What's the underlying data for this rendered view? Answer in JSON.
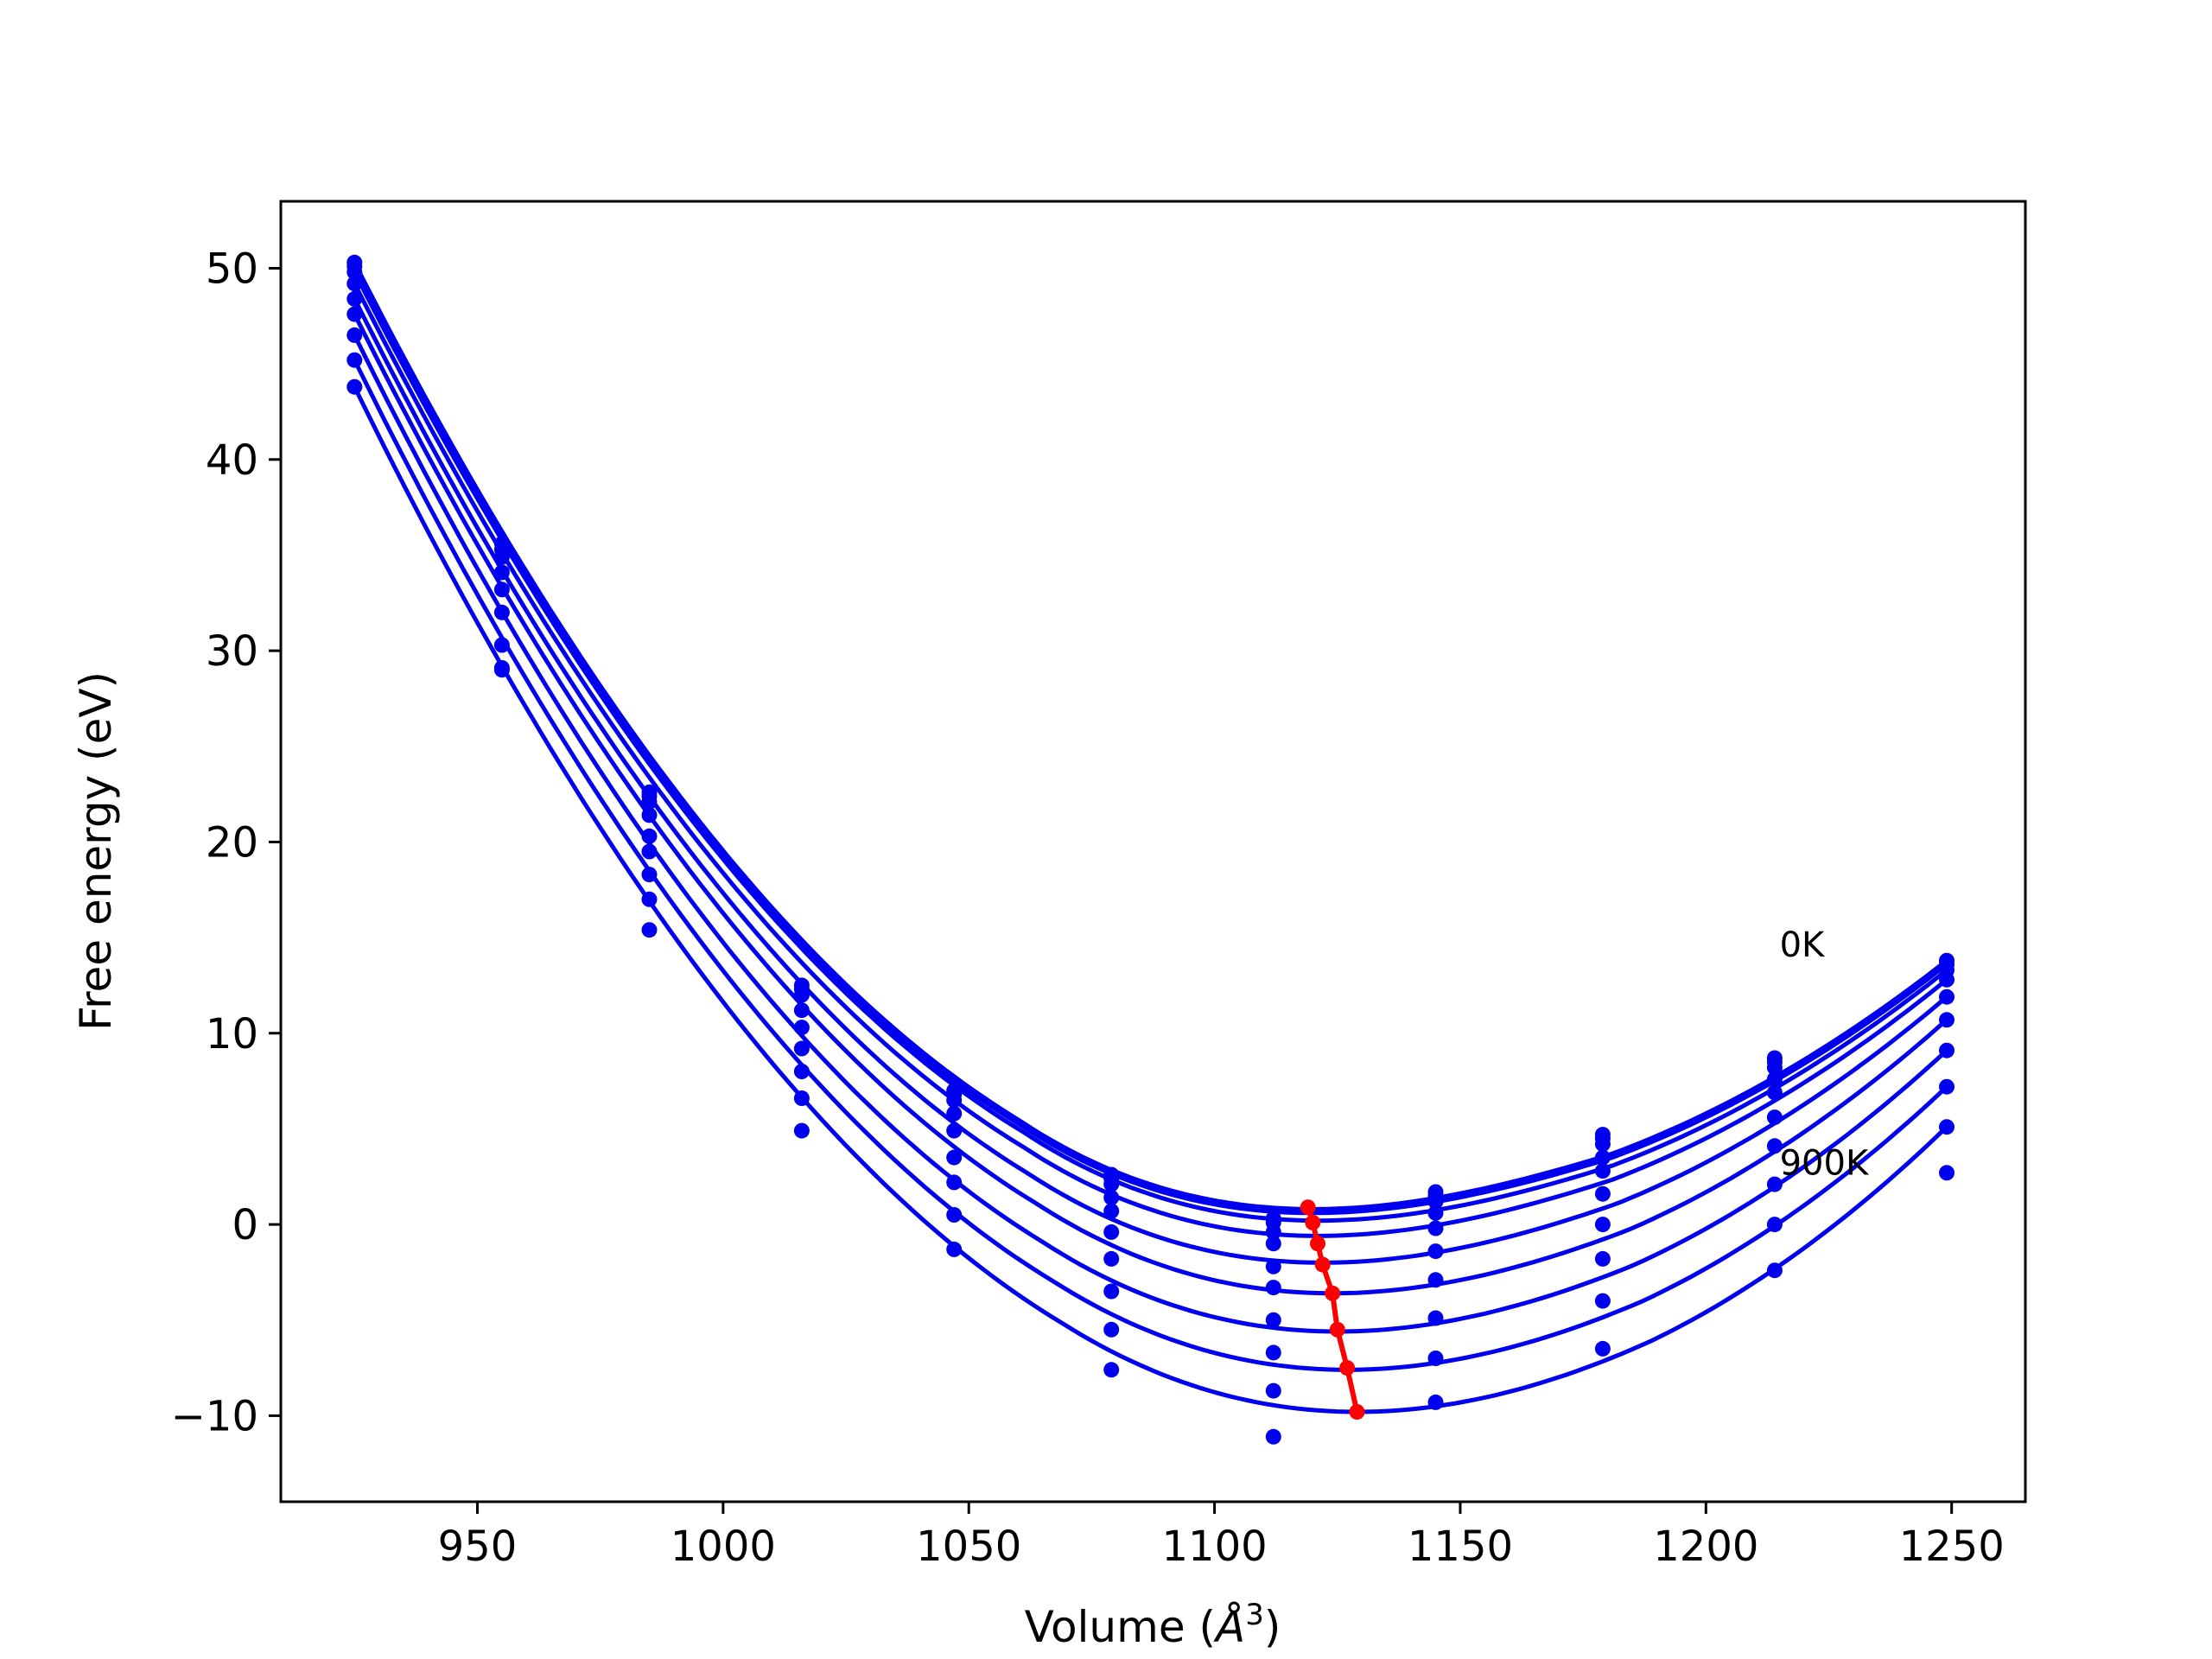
{
  "chart_data": {
    "type": "line",
    "xlabel": "Volume (",
    "xlabel_unit": "Å",
    "xlabel_exp": "3",
    "xlabel_close": ")",
    "ylabel": "Free energy (eV)",
    "xlim": [
      910,
      1265
    ],
    "ylim": [
      -14.5,
      53.5
    ],
    "xticks": [
      950,
      1000,
      1050,
      1100,
      1150,
      1200,
      1250
    ],
    "yticks": [
      -10,
      0,
      10,
      20,
      30,
      40,
      50
    ],
    "xtick_labels": [
      "950",
      "1000",
      "1050",
      "1100",
      "1150",
      "1200",
      "1250"
    ],
    "ytick_labels": [
      "−10",
      "0",
      "10",
      "20",
      "30",
      "40",
      "50"
    ],
    "grid": false,
    "colors": {
      "curves": "#0000ee",
      "minimum_path": "#ff0000"
    },
    "x": [
      925,
      955,
      985,
      1016,
      1047,
      1079,
      1112,
      1145,
      1179,
      1214,
      1249
    ],
    "series": [
      {
        "values": [
          50.3,
          35.6,
          22.6,
          12.5,
          7.0,
          2.6,
          0.3,
          1.7,
          4.7,
          8.7,
          13.8
        ]
      },
      {
        "values": [
          50.1,
          35.3,
          22.4,
          12.3,
          6.8,
          2.4,
          0.1,
          1.5,
          4.5,
          8.5,
          13.6
        ]
      },
      {
        "values": [
          49.8,
          34.9,
          22.1,
          12.0,
          6.5,
          2.1,
          -0.4,
          1.2,
          4.2,
          8.2,
          13.3
        ]
      },
      {
        "values": [
          49.2,
          34.1,
          21.4,
          11.2,
          5.8,
          1.4,
          -1.0,
          0.6,
          3.5,
          7.6,
          12.8
        ]
      },
      {
        "values": [
          48.4,
          33.2,
          20.3,
          10.3,
          4.9,
          0.7,
          -2.2,
          -0.2,
          2.8,
          6.9,
          11.9
        ]
      },
      {
        "values": [
          47.6,
          32.0,
          19.5,
          9.2,
          3.5,
          -0.4,
          -3.3,
          -1.4,
          1.6,
          5.6,
          10.7
        ]
      },
      {
        "values": [
          46.5,
          30.3,
          18.3,
          8.0,
          2.2,
          -1.8,
          -5.0,
          -2.9,
          0.0,
          4.1,
          9.1
        ]
      },
      {
        "values": [
          45.2,
          29.1,
          17.0,
          6.6,
          0.5,
          -3.5,
          -6.7,
          -4.9,
          -1.8,
          2.1,
          7.2
        ]
      },
      {
        "values": [
          43.8,
          29.0,
          15.4,
          4.9,
          -1.3,
          -5.5,
          -8.7,
          -7.0,
          -4.0,
          0.0,
          5.1
        ]
      },
      {
        "values": [
          null,
          null,
          null,
          null,
          null,
          -7.6,
          -11.1,
          -9.3,
          -6.5,
          -2.4,
          2.7
        ]
      }
    ],
    "fit_curves": [
      {
        "vmin": 1120,
        "emin": 0.8,
        "slope_left": -2.56,
        "curv_right": 0.00141
      },
      {
        "vmin": 1120,
        "emin": 0.6,
        "slope_left": -2.56,
        "curv_right": 0.00141
      },
      {
        "vmin": 1121,
        "emin": 0.2,
        "slope_left": -2.56,
        "curv_right": 0.00141
      },
      {
        "vmin": 1121,
        "emin": -0.6,
        "slope_left": -2.57,
        "curv_right": 0.00141
      },
      {
        "vmin": 1122,
        "emin": -2.0,
        "slope_left": -2.58,
        "curv_right": 0.00141
      },
      {
        "vmin": 1124,
        "emin": -3.6,
        "slope_left": -2.6,
        "curv_right": 0.00141
      },
      {
        "vmin": 1125,
        "emin": -5.6,
        "slope_left": -2.63,
        "curv_right": 0.00141
      },
      {
        "vmin": 1127,
        "emin": -7.6,
        "slope_left": -2.67,
        "curv_right": 0.00141
      },
      {
        "vmin": 1129,
        "emin": -9.8,
        "slope_left": -2.72,
        "curv_right": 0.00141
      }
    ],
    "minimum_path": {
      "x": [
        1119,
        1120,
        1121,
        1122,
        1124,
        1125,
        1127,
        1129
      ],
      "y": [
        0.9,
        0.1,
        -1.0,
        -2.1,
        -3.6,
        -5.5,
        -7.5,
        -9.8
      ]
    },
    "annotations": [
      {
        "text": "0K",
        "x": 1215,
        "y": 14.0
      },
      {
        "text": "900K",
        "x": 1215,
        "y": 2.6
      }
    ]
  }
}
